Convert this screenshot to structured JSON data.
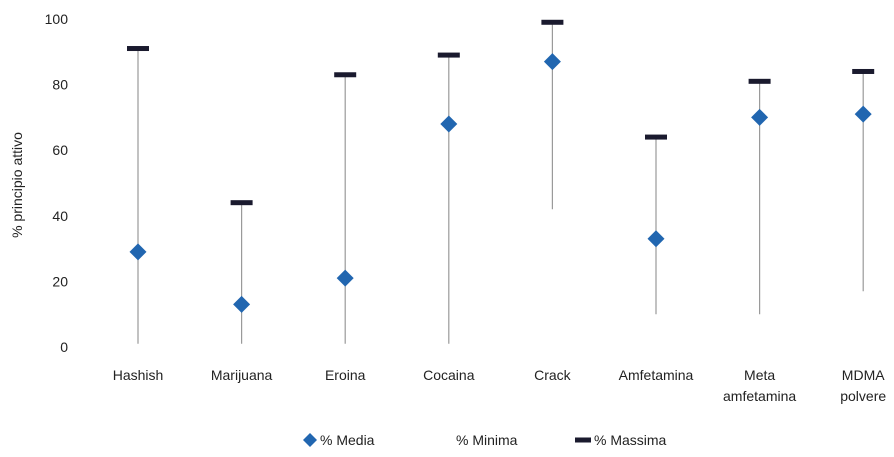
{
  "chart_data": {
    "type": "range",
    "ylabel": "% principio attivo",
    "ylim": [
      0,
      100
    ],
    "yticks": [
      0,
      20,
      40,
      60,
      80,
      100
    ],
    "categories": [
      [
        "Hashish"
      ],
      [
        "Marijuana"
      ],
      [
        "Eroina"
      ],
      [
        "Cocaina"
      ],
      [
        "Crack"
      ],
      [
        "Amfetamina"
      ],
      [
        "Meta",
        "amfetamina"
      ],
      [
        "MDMA",
        "polvere"
      ]
    ],
    "series": [
      {
        "name": "% Media",
        "values": [
          29,
          13,
          21,
          68,
          87,
          33,
          70,
          71
        ]
      },
      {
        "name": "% Minima",
        "values": [
          1,
          1,
          1,
          1,
          42,
          10,
          10,
          17
        ]
      },
      {
        "name": "% Massima",
        "values": [
          91,
          44,
          83,
          89,
          99,
          64,
          81,
          84
        ]
      }
    ],
    "legend_position": "bottom",
    "grid": false
  },
  "colors": {
    "media": "#2166b0",
    "range_line": "#9a9a9a",
    "massima": "#1a1a2e",
    "text": "#222222"
  }
}
